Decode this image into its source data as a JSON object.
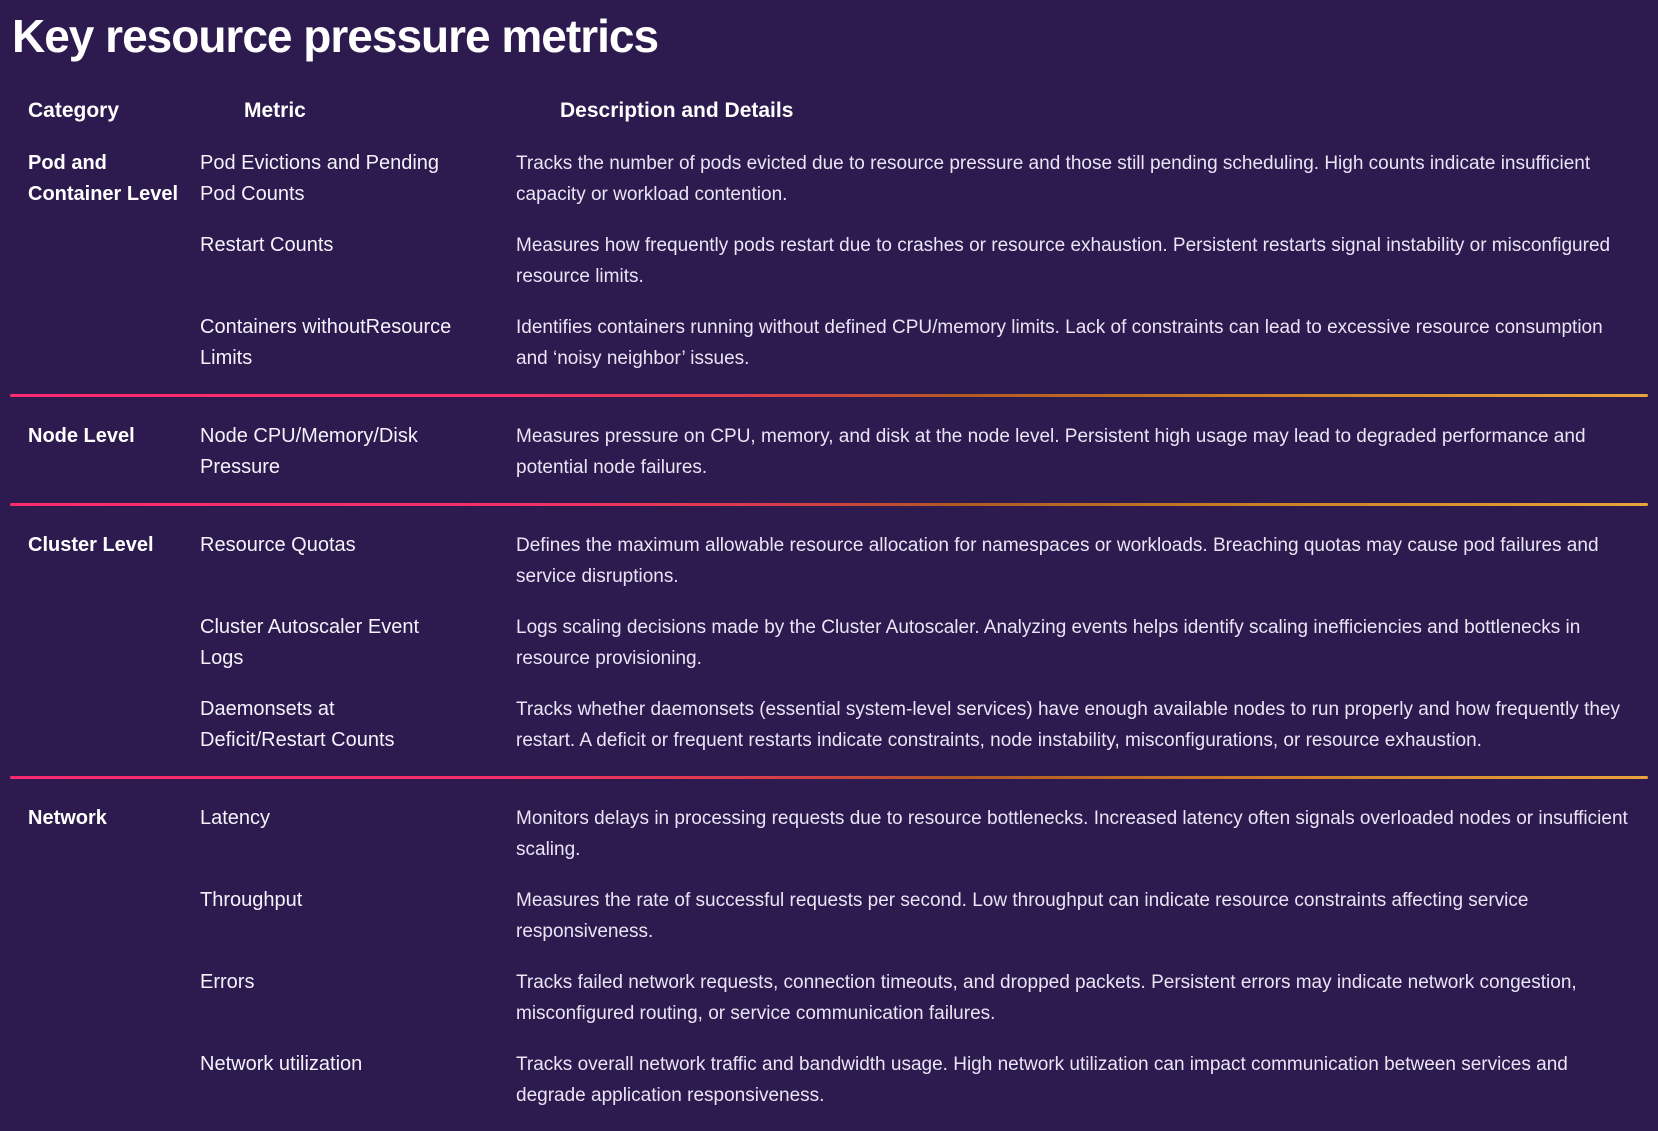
{
  "page": {
    "title": "Key resource pressure metrics",
    "colors": {
      "background": "#2d1a4e",
      "text": "#ffffff",
      "description_text": "#eae4f5",
      "divider_pink": "#ff2a70",
      "divider_orange": "#e8a43c"
    }
  },
  "table": {
    "columns": [
      "Category",
      "Metric",
      "Description and Details"
    ],
    "sections": [
      {
        "category": "Pod and Container Level",
        "rows": [
          {
            "metric": "Pod Evictions and Pending Pod Counts",
            "description": "Tracks the number of pods evicted due to resource pressure and those still pending scheduling. High counts indicate insufficient capacity or workload contention."
          },
          {
            "metric": "Restart Counts",
            "description": "Measures how frequently pods restart due to crashes or resource exhaustion. Persistent restarts signal instability or misconfigured resource limits."
          },
          {
            "metric": "Containers withoutResource Limits",
            "description": "Identifies containers running without defined CPU/memory limits. Lack of constraints can lead to excessive resource consumption and ‘noisy neighbor’ issues."
          }
        ]
      },
      {
        "category": "Node Level",
        "rows": [
          {
            "metric": "Node CPU/Memory/Disk Pressure",
            "description": "Measures pressure on CPU, memory, and disk at the node level. Persistent high usage may lead to degraded performance and potential node failures."
          }
        ]
      },
      {
        "category": "Cluster Level",
        "rows": [
          {
            "metric": "Resource Quotas",
            "description": "Defines the maximum allowable resource allocation for namespaces or workloads. Breaching quotas may cause pod failures and service disruptions."
          },
          {
            "metric": "Cluster Autoscaler Event Logs",
            "description": "Logs scaling decisions made by the Cluster Autoscaler. Analyzing events helps identify scaling inefficiencies and bottlenecks in resource provisioning."
          },
          {
            "metric": "Daemonsets at Deficit/Restart Counts",
            "description": "Tracks whether daemonsets (essential system-level services) have enough available nodes to run properly and how frequently they restart. A deficit or frequent restarts indicate constraints, node instability, misconfigurations, or resource exhaustion."
          }
        ]
      },
      {
        "category": "Network",
        "rows": [
          {
            "metric": "Latency",
            "description": "Monitors delays in processing requests due to resource bottlenecks. Increased latency often signals overloaded nodes or insufficient scaling."
          },
          {
            "metric": "Throughput",
            "description": "Measures the rate of successful requests per second. Low throughput can indicate resource constraints affecting service responsiveness."
          },
          {
            "metric": "Errors",
            "description": "Tracks failed network requests, connection timeouts, and dropped packets. Persistent errors may indicate network congestion, misconfigured routing, or service communication failures."
          },
          {
            "metric": "Network utilization",
            "description": "Tracks overall network traffic and bandwidth usage. High network utilization can impact communication between services and degrade application responsiveness."
          }
        ]
      }
    ]
  }
}
